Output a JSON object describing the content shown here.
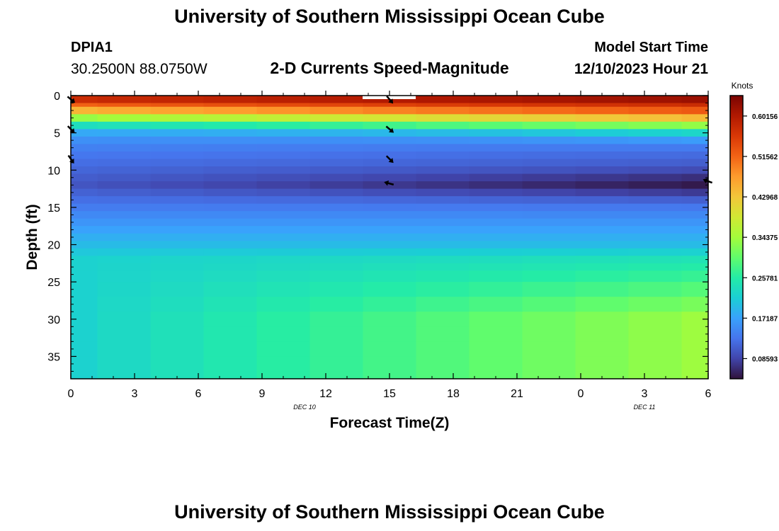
{
  "page": {
    "title": "University of Southern Mississippi Ocean Cube",
    "footer_title": "University of Southern Mississippi Ocean Cube",
    "station_id": "DPIA1",
    "station_coords": "30.2500N  88.0750W",
    "subtitle": "2-D Currents Speed-Magnitude",
    "model_start_label": "Model Start Time",
    "model_start_value": "12/10/2023 Hour 21"
  },
  "colors": {
    "colormap": [
      "#30123b",
      "#4145ab",
      "#4675ed",
      "#39a2fc",
      "#1bcfd4",
      "#24eca6",
      "#61fc6c",
      "#a4fc3b",
      "#d1e834",
      "#f3c63a",
      "#fe9b2d",
      "#f36315",
      "#d93806",
      "#b11901",
      "#7a0402"
    ]
  },
  "chart_data": {
    "type": "heatmap",
    "title": "2-D Currents Speed-Magnitude",
    "xlabel": "Forecast Time(Z)",
    "ylabel": "Depth (ft)",
    "x_ticks": [
      "0",
      "3",
      "6",
      "9",
      "12",
      "15",
      "18",
      "21",
      "0",
      "3",
      "6"
    ],
    "date_labels": [
      {
        "label": "DEC 10",
        "hour": 11
      },
      {
        "label": "DEC 11",
        "hour": 27
      }
    ],
    "y_ticks": [
      "0",
      "5",
      "10",
      "15",
      "20",
      "25",
      "30",
      "35"
    ],
    "xlim": [
      0,
      30
    ],
    "ylim": [
      0,
      38
    ],
    "x_hours": [
      0,
      2.5,
      5,
      7.5,
      10,
      12.5,
      15,
      17.5,
      20,
      22.5,
      25,
      27.5,
      30
    ],
    "depth_levels": [
      0,
      1,
      1.5,
      2.5,
      3.5,
      4.5,
      5.5,
      6.5,
      7.5,
      8.5,
      9.5,
      10.5,
      11.5,
      12.5,
      13.5,
      14.5,
      15.5,
      16.5,
      17.5,
      18.5,
      19.5,
      20.5,
      21.5,
      22.5,
      23.5,
      25,
      27,
      29,
      31,
      33,
      35,
      37,
      38
    ],
    "colorbar": {
      "label": "Knots",
      "ticks": [
        "0.08593",
        "0.17187",
        "0.25781",
        "0.34375",
        "0.42968",
        "0.51562",
        "0.60156"
      ],
      "min": 0.043,
      "max": 0.645
    },
    "vectors": [
      {
        "hour": 0,
        "depth": 0.5,
        "angle": 40
      },
      {
        "hour": 0,
        "depth": 4.5,
        "angle": 45
      },
      {
        "hour": 0,
        "depth": 8.5,
        "angle": 55
      },
      {
        "hour": 15,
        "depth": 0.5,
        "angle": 50
      },
      {
        "hour": 15,
        "depth": 4.5,
        "angle": 40
      },
      {
        "hour": 15,
        "depth": 8.5,
        "angle": 45
      },
      {
        "hour": 15,
        "depth": 11.8,
        "angle": 195
      },
      {
        "hour": 30,
        "depth": 11.5,
        "angle": 200
      }
    ]
  }
}
